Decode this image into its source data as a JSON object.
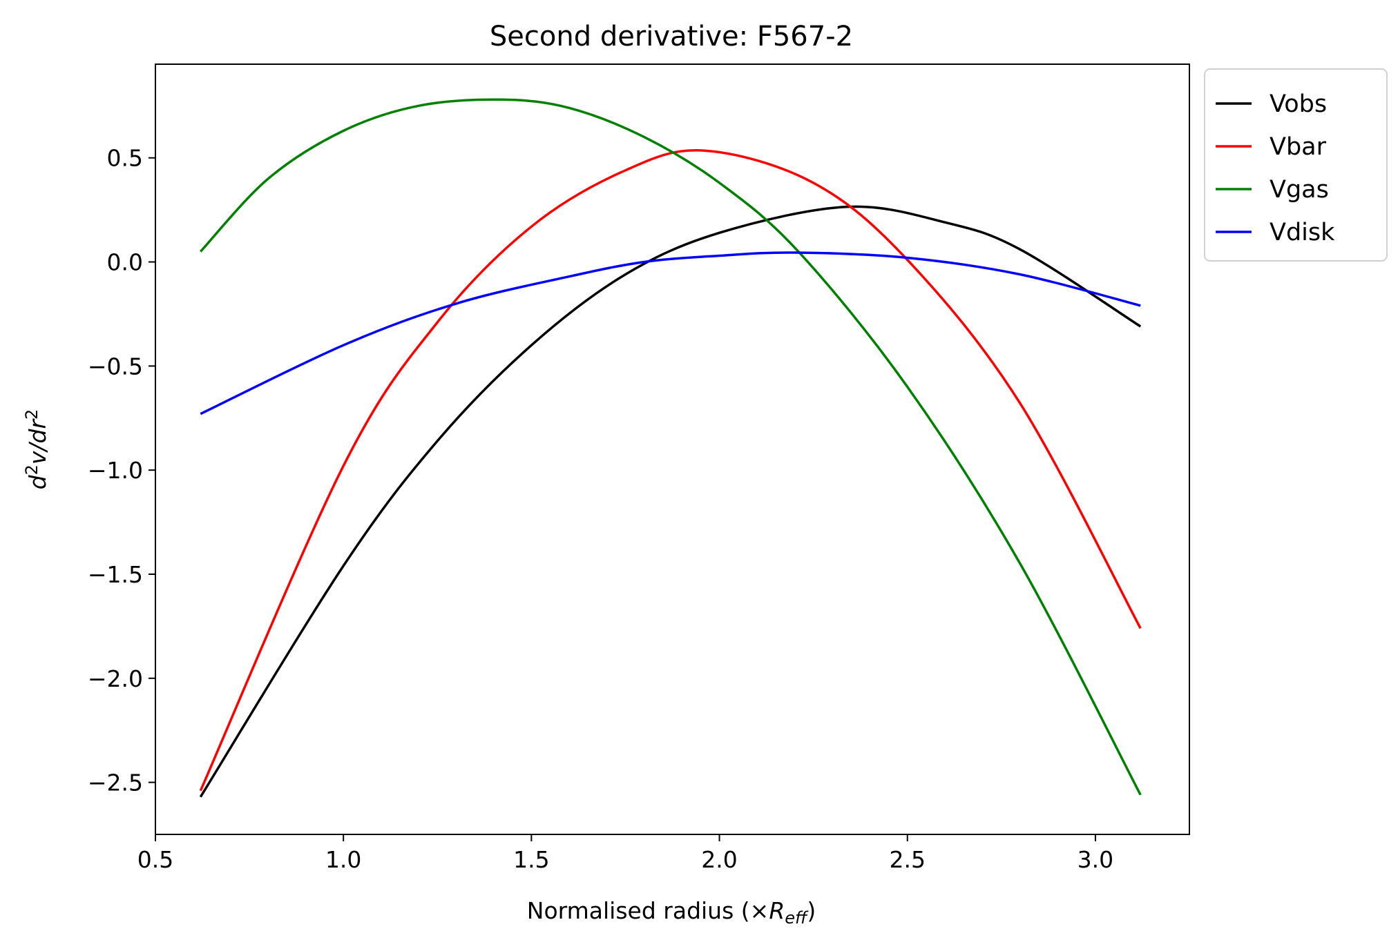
{
  "chart_data": {
    "type": "line",
    "title": "Second derivative: F567-2",
    "xlabel_prefix": "Normalised radius (×",
    "xlabel_var": "R",
    "xlabel_sub": "eff",
    "xlabel_suffix": ")",
    "ylabel_parts": [
      "d",
      "2",
      "v/dr",
      "2"
    ],
    "xlim": [
      0.5,
      3.25
    ],
    "ylim": [
      -2.75,
      0.95
    ],
    "xticks": [
      0.5,
      1.0,
      1.5,
      2.0,
      2.5,
      3.0
    ],
    "xtick_labels": [
      "0.5",
      "1.0",
      "1.5",
      "2.0",
      "2.5",
      "3.0"
    ],
    "yticks": [
      -2.5,
      -2.0,
      -1.5,
      -1.0,
      -0.5,
      0.0,
      0.5
    ],
    "ytick_labels": [
      "−2.5",
      "−2.0",
      "−1.5",
      "−1.0",
      "−0.5",
      "0.0",
      "0.5"
    ],
    "grid": false,
    "legend_position": "outside upper right",
    "series": [
      {
        "name": "Vobs",
        "color": "#000000",
        "x": [
          0.62,
          1.0,
          1.25,
          1.5,
          1.75,
          2.0,
          2.34,
          2.6,
          2.8,
          3.12
        ],
        "y": [
          -2.57,
          -1.46,
          -0.86,
          -0.4,
          -0.06,
          0.14,
          0.265,
          0.19,
          0.06,
          -0.31
        ]
      },
      {
        "name": "Vbar",
        "color": "#ff0000",
        "x": [
          0.62,
          1.0,
          1.25,
          1.5,
          1.75,
          1.96,
          2.25,
          2.5,
          2.8,
          3.12
        ],
        "y": [
          -2.54,
          -0.98,
          -0.29,
          0.17,
          0.44,
          0.535,
          0.38,
          0.01,
          -0.68,
          -1.76
        ]
      },
      {
        "name": "Vgas",
        "color": "#008000",
        "x": [
          0.62,
          0.8,
          1.0,
          1.2,
          1.42,
          1.6,
          1.8,
          2.0,
          2.21,
          2.5,
          2.8,
          3.12
        ],
        "y": [
          0.05,
          0.4,
          0.63,
          0.75,
          0.78,
          0.74,
          0.6,
          0.38,
          0.05,
          -0.6,
          -1.45,
          -2.56
        ]
      },
      {
        "name": "Vdisk",
        "color": "#0000ff",
        "x": [
          0.62,
          1.0,
          1.3,
          1.6,
          1.8,
          2.0,
          2.2,
          2.5,
          2.8,
          3.12
        ],
        "y": [
          -0.73,
          -0.4,
          -0.2,
          -0.07,
          0.0,
          0.03,
          0.045,
          0.02,
          -0.06,
          -0.21
        ]
      }
    ]
  }
}
